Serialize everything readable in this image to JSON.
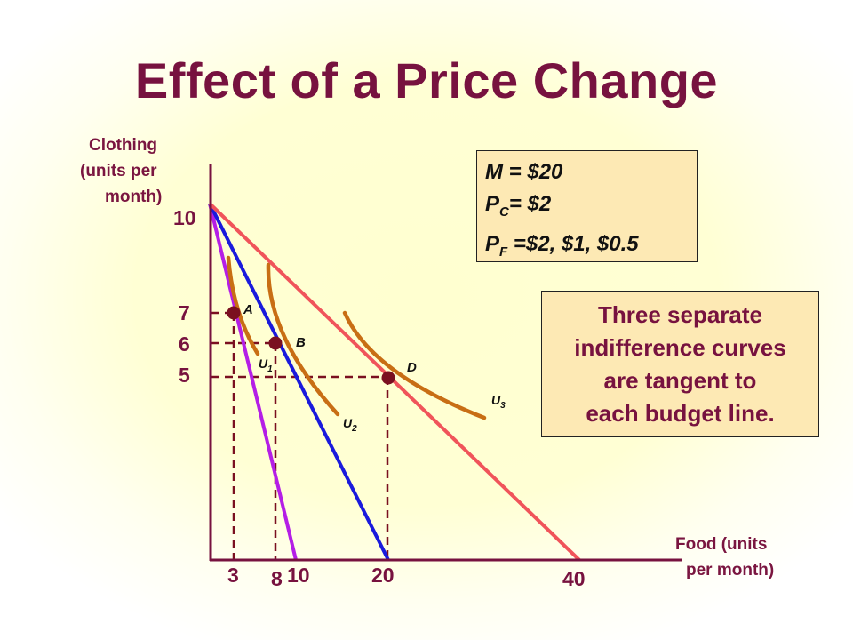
{
  "title": "Effect of a Price Change",
  "y_axis_label": [
    "Clothing",
    "(units per",
    "month)"
  ],
  "x_axis_label": [
    "Food (units",
    "per month)"
  ],
  "y_ticks": [
    "10",
    "7",
    "6",
    "5"
  ],
  "x_ticks": [
    "3",
    "8",
    "10",
    "20",
    "40"
  ],
  "info_box": {
    "m_line": "M = $20",
    "pc_main": "P",
    "pc_sub": "C",
    "pc_rest": "= $2",
    "pf_main": "P",
    "pf_sub": "F",
    "pf_rest": " =$2, $1, $0.5"
  },
  "note_box": [
    "Three separate",
    "indifference curves",
    "are tangent to",
    "each budget line."
  ],
  "points": [
    "A",
    "B",
    "D"
  ],
  "curves": [
    {
      "main": "U",
      "sub": "1"
    },
    {
      "main": "U",
      "sub": "2"
    },
    {
      "main": "U",
      "sub": "3"
    }
  ],
  "colors": {
    "title": "#77123f",
    "budget_line_pf2": "#b41ee6",
    "budget_line_pf1": "#1a1adc",
    "budget_line_pf05": "#f0545a",
    "indifference_curve": "#c86e14",
    "point": "#7a1020",
    "box_fill": "#fde9b4"
  },
  "chart_data": {
    "type": "line",
    "xlabel": "Food (units per month)",
    "ylabel": "Clothing (units per month)",
    "budget_lines": [
      {
        "price_food": 2,
        "x": [
          0,
          10
        ],
        "y": [
          10,
          0
        ]
      },
      {
        "price_food": 1,
        "x": [
          0,
          20
        ],
        "y": [
          10,
          0
        ]
      },
      {
        "price_food": 0.5,
        "x": [
          0,
          40
        ],
        "y": [
          10,
          0
        ]
      }
    ],
    "tangency_points": [
      {
        "label": "A",
        "x": 3,
        "y": 7
      },
      {
        "label": "B",
        "x": 8,
        "y": 6
      },
      {
        "label": "D",
        "x": 20,
        "y": 5
      }
    ],
    "indifference_curves": [
      "U1",
      "U2",
      "U3"
    ]
  }
}
